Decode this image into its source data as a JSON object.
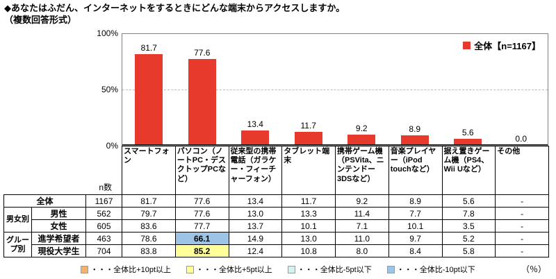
{
  "title": {
    "line1": "◆あなたはふだん、インターネットをするときにどんな端末からアクセスしますか。",
    "line2": "（複数回答形式）"
  },
  "chart": {
    "legend_label": "全体【n=1167】",
    "bar_color": "#E8392D",
    "y_ticks": [
      "100%",
      "50%",
      "0%"
    ]
  },
  "chart_data": {
    "type": "bar",
    "title": "あなたはふだん、インターネットをするときにどんな端末からアクセスしますか。（複数回答形式）",
    "categories": [
      "スマートフォン",
      "パソコン（ノートPC・デスクトップPCなど）",
      "従来型の携帯電話（ガラケー・フィーチャーフォン）",
      "タブレット端末",
      "携帯ゲーム機（PSVita、ニンテンドー3DSなど）",
      "音楽プレイヤー（iPod touchなど）",
      "据え置きゲーム機（PS4、Wii Uなど）",
      "その他"
    ],
    "series": [
      {
        "name": "全体",
        "n": 1167,
        "values": [
          81.7,
          77.6,
          13.4,
          11.7,
          9.2,
          8.9,
          5.6,
          0.0
        ]
      }
    ],
    "values": [
      81.7,
      77.6,
      13.4,
      11.7,
      9.2,
      8.9,
      5.6,
      0.0
    ],
    "xlabel": "",
    "ylabel": "%",
    "ylim": [
      0,
      100
    ],
    "grid": "dashed line at 50%",
    "legend_position": "top-right"
  },
  "table": {
    "n_header": "n数",
    "rows": [
      {
        "group": "",
        "label": "全体",
        "n": "1167",
        "values": [
          "81.7",
          "77.6",
          "13.4",
          "11.7",
          "9.2",
          "8.9",
          "5.6",
          "-"
        ]
      },
      {
        "group": "男女別",
        "label": "男性",
        "n": "562",
        "values": [
          "79.7",
          "77.6",
          "13.0",
          "13.3",
          "11.4",
          "7.7",
          "7.8",
          "-"
        ]
      },
      {
        "group": "男女別",
        "label": "女性",
        "n": "605",
        "values": [
          "83.6",
          "77.7",
          "13.7",
          "10.1",
          "7.1",
          "10.1",
          "3.5",
          "-"
        ]
      },
      {
        "group": "グループ別",
        "label": "進学希望者",
        "n": "463",
        "values": [
          "78.6",
          "66.1",
          "14.9",
          "13.0",
          "11.0",
          "9.7",
          "5.2",
          "-"
        ]
      },
      {
        "group": "グループ別",
        "label": "現役大学生",
        "n": "704",
        "values": [
          "83.8",
          "85.2",
          "12.4",
          "10.8",
          "8.0",
          "8.4",
          "5.8",
          "-"
        ]
      }
    ]
  },
  "highlights": {
    "plus10": "#F9B26B",
    "plus5": "#FFFF99",
    "minus5": "#D6F2F0",
    "minus10": "#9DC3E6"
  },
  "footer": {
    "legend": [
      {
        "label": "・・・全体比+10pt以上",
        "color": "#F9B26B"
      },
      {
        "label": "・・・全体比+5pt以上",
        "color": "#FFFF99"
      },
      {
        "label": "・・・全体比-5pt以下",
        "color": "#D6F2F0"
      },
      {
        "label": "・・・全体比-10pt以下",
        "color": "#9DC3E6"
      }
    ],
    "percent_label": "（％）"
  }
}
